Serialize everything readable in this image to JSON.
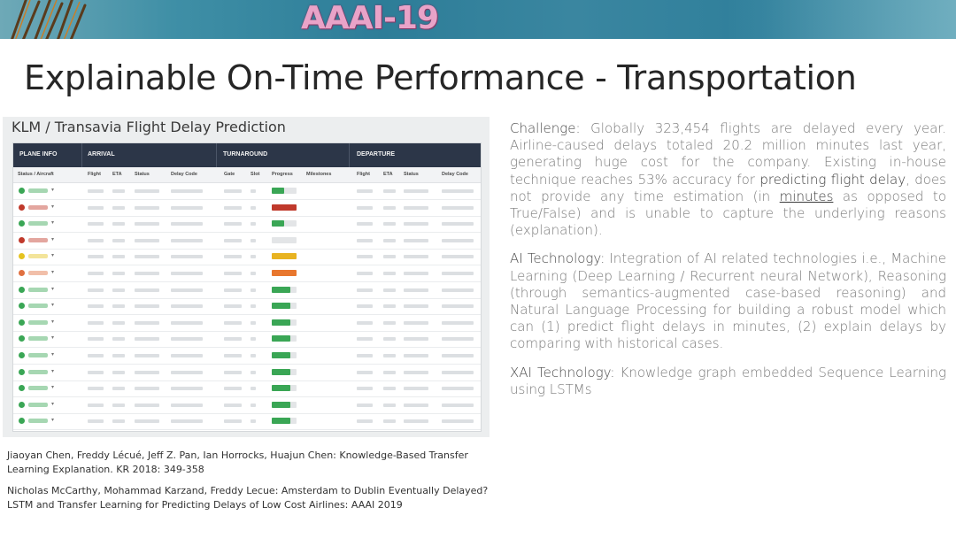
{
  "banner": {
    "logo": "AAAI-19"
  },
  "slide_title": "Explainable On-Time Performance - Transportation",
  "screenshot": {
    "title": "KLM / Transavia Flight Delay Prediction",
    "groups": [
      "PLANE INFO",
      "ARRIVAL",
      "TURNAROUND",
      "DEPARTURE"
    ],
    "columns": [
      "Status / Aircraft",
      "Flight",
      "ETA",
      "Status",
      "Delay Code",
      "Gate",
      "Slot",
      "Progress",
      "Milestones",
      "Flight",
      "ETA",
      "Status",
      "Delay Code"
    ],
    "rows": [
      {
        "status_color": "#3aa655",
        "progress": 0.5,
        "bar_color": "#3aa655"
      },
      {
        "status_color": "#c0392b",
        "progress": 1.0,
        "bar_color": "#c0392b"
      },
      {
        "status_color": "#3aa655",
        "progress": 0.5,
        "bar_color": "#3aa655"
      },
      {
        "status_color": "#c0392b",
        "progress": 0.0,
        "bar_color": "#c0392b"
      },
      {
        "status_color": "#e5c320",
        "progress": 1.0,
        "bar_color": "#e8b321"
      },
      {
        "status_color": "#e07040",
        "progress": 1.0,
        "bar_color": "#e8772e"
      },
      {
        "status_color": "#3aa655",
        "progress": 0.75,
        "bar_color": "#3aa655"
      },
      {
        "status_color": "#3aa655",
        "progress": 0.75,
        "bar_color": "#3aa655"
      },
      {
        "status_color": "#3aa655",
        "progress": 0.75,
        "bar_color": "#3aa655"
      },
      {
        "status_color": "#3aa655",
        "progress": 0.75,
        "bar_color": "#3aa655"
      },
      {
        "status_color": "#3aa655",
        "progress": 0.75,
        "bar_color": "#3aa655"
      },
      {
        "status_color": "#3aa655",
        "progress": 0.75,
        "bar_color": "#3aa655"
      },
      {
        "status_color": "#3aa655",
        "progress": 0.75,
        "bar_color": "#3aa655"
      },
      {
        "status_color": "#3aa655",
        "progress": 0.75,
        "bar_color": "#3aa655"
      },
      {
        "status_color": "#3aa655",
        "progress": 0.75,
        "bar_color": "#3aa655"
      }
    ]
  },
  "challenge": {
    "label": "Challenge:",
    "text_1": " Globally 323,454 flights are delayed every year. Airline-caused delays totaled 20.2 million minutes last year, generating huge cost for the company. Existing in-house technique reaches 53% accuracy for ",
    "emph": "predicting flight delay",
    "text_2": ", does not provide any time estimation (in ",
    "underline": "minutes",
    "text_3": " as opposed to True/False) and is unable to capture the underlying reasons (explanation)."
  },
  "ai_tech": {
    "label": "AI Technology:",
    "text": " Integration of AI related technologies i.e., Machine Learning (Deep Learning / Recurrent neural Network), Reasoning (through semantics-augmented case-based reasoning) and Natural Language Processing for building a robust model which can (1) predict flight delays in minutes, (2) explain delays by comparing with historical cases."
  },
  "xai_tech": {
    "label": "XAI Technology:",
    "text": " Knowledge graph embedded Sequence Learning using LSTMs"
  },
  "references": [
    "Jiaoyan Chen, Freddy Lécué, Jeff Z. Pan, Ian Horrocks, Huajun Chen: Knowledge-Based Transfer Learning Explanation. KR 2018: 349-358",
    "Nicholas McCarthy, Mohammad Karzand, Freddy Lecue: Amsterdam to Dublin Eventually Delayed? LSTM and Transfer Learning for Predicting Delays of Low Cost Airlines: AAAI 2019"
  ]
}
